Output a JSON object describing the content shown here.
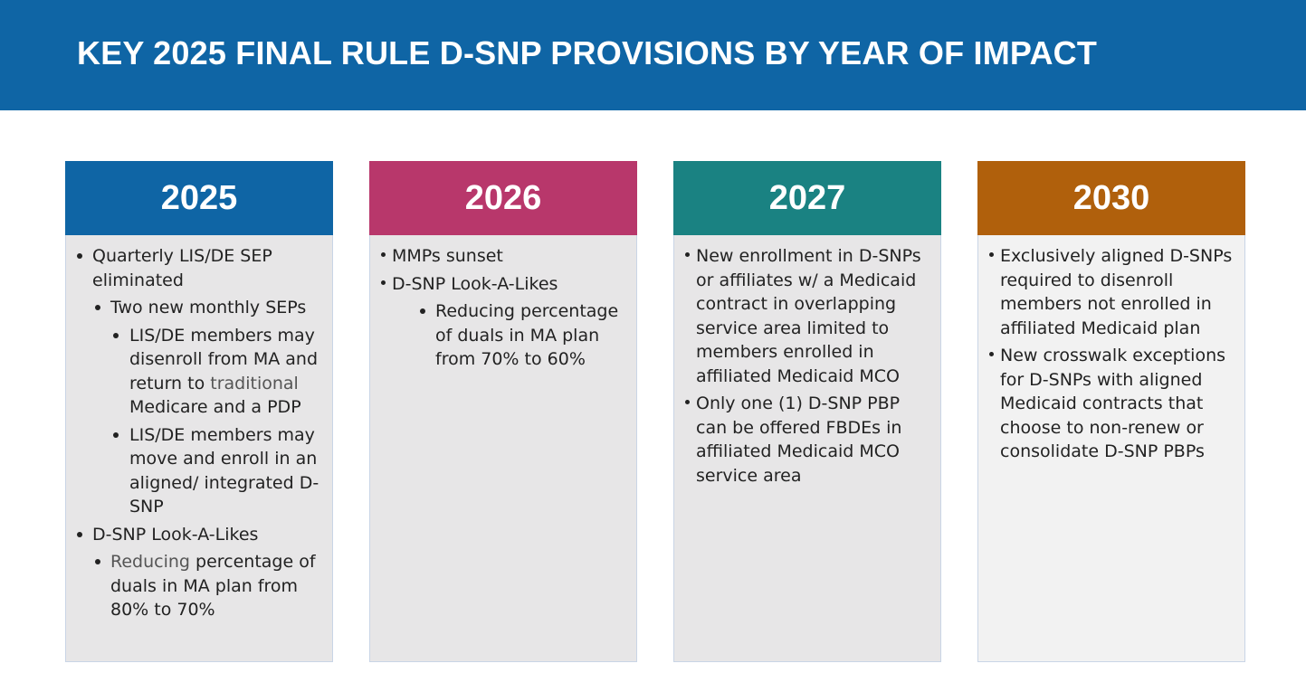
{
  "title": "KEY 2025 FINAL RULE D-SNP PROVISIONS BY YEAR OF IMPACT",
  "colors": {
    "banner": "#0f65a5",
    "col_2025": "#0f65a5",
    "col_2026": "#b8376b",
    "col_2027": "#1a8282",
    "col_2030": "#b0600c"
  },
  "columns": [
    {
      "year": "2025",
      "items": [
        "Quarterly LIS/DE SEP eliminated",
        "Two new monthly SEPs",
        "LIS/DE members may disenroll from MA and return to",
        "traditional",
        "Medicare and a PDP",
        "LIS/DE members may move and enroll in an aligned/ integrated D-SNP",
        "D-SNP Look-A-Likes",
        "Reducing",
        "percentage of duals in MA plan from 80% to 70%"
      ]
    },
    {
      "year": "2026",
      "items": [
        "MMPs sunset",
        "D-SNP Look-A-Likes",
        "Reducing percentage of duals in MA plan from 70% to 60%"
      ]
    },
    {
      "year": "2027",
      "items": [
        "New enrollment in D-SNPs or affiliates w/ a Medicaid contract in overlapping service area limited to members enrolled in affiliated Medicaid MCO",
        "Only one (1) D-SNP PBP can be offered FBDEs in affiliated  Medicaid MCO service area"
      ]
    },
    {
      "year": "2030",
      "items": [
        "Exclusively aligned D-SNPs required to disenroll members not enrolled in affiliated Medicaid plan",
        "New crosswalk exceptions for D-SNPs with aligned Medicaid contracts that choose to non-renew or consolidate D-SNP PBPs"
      ]
    }
  ]
}
